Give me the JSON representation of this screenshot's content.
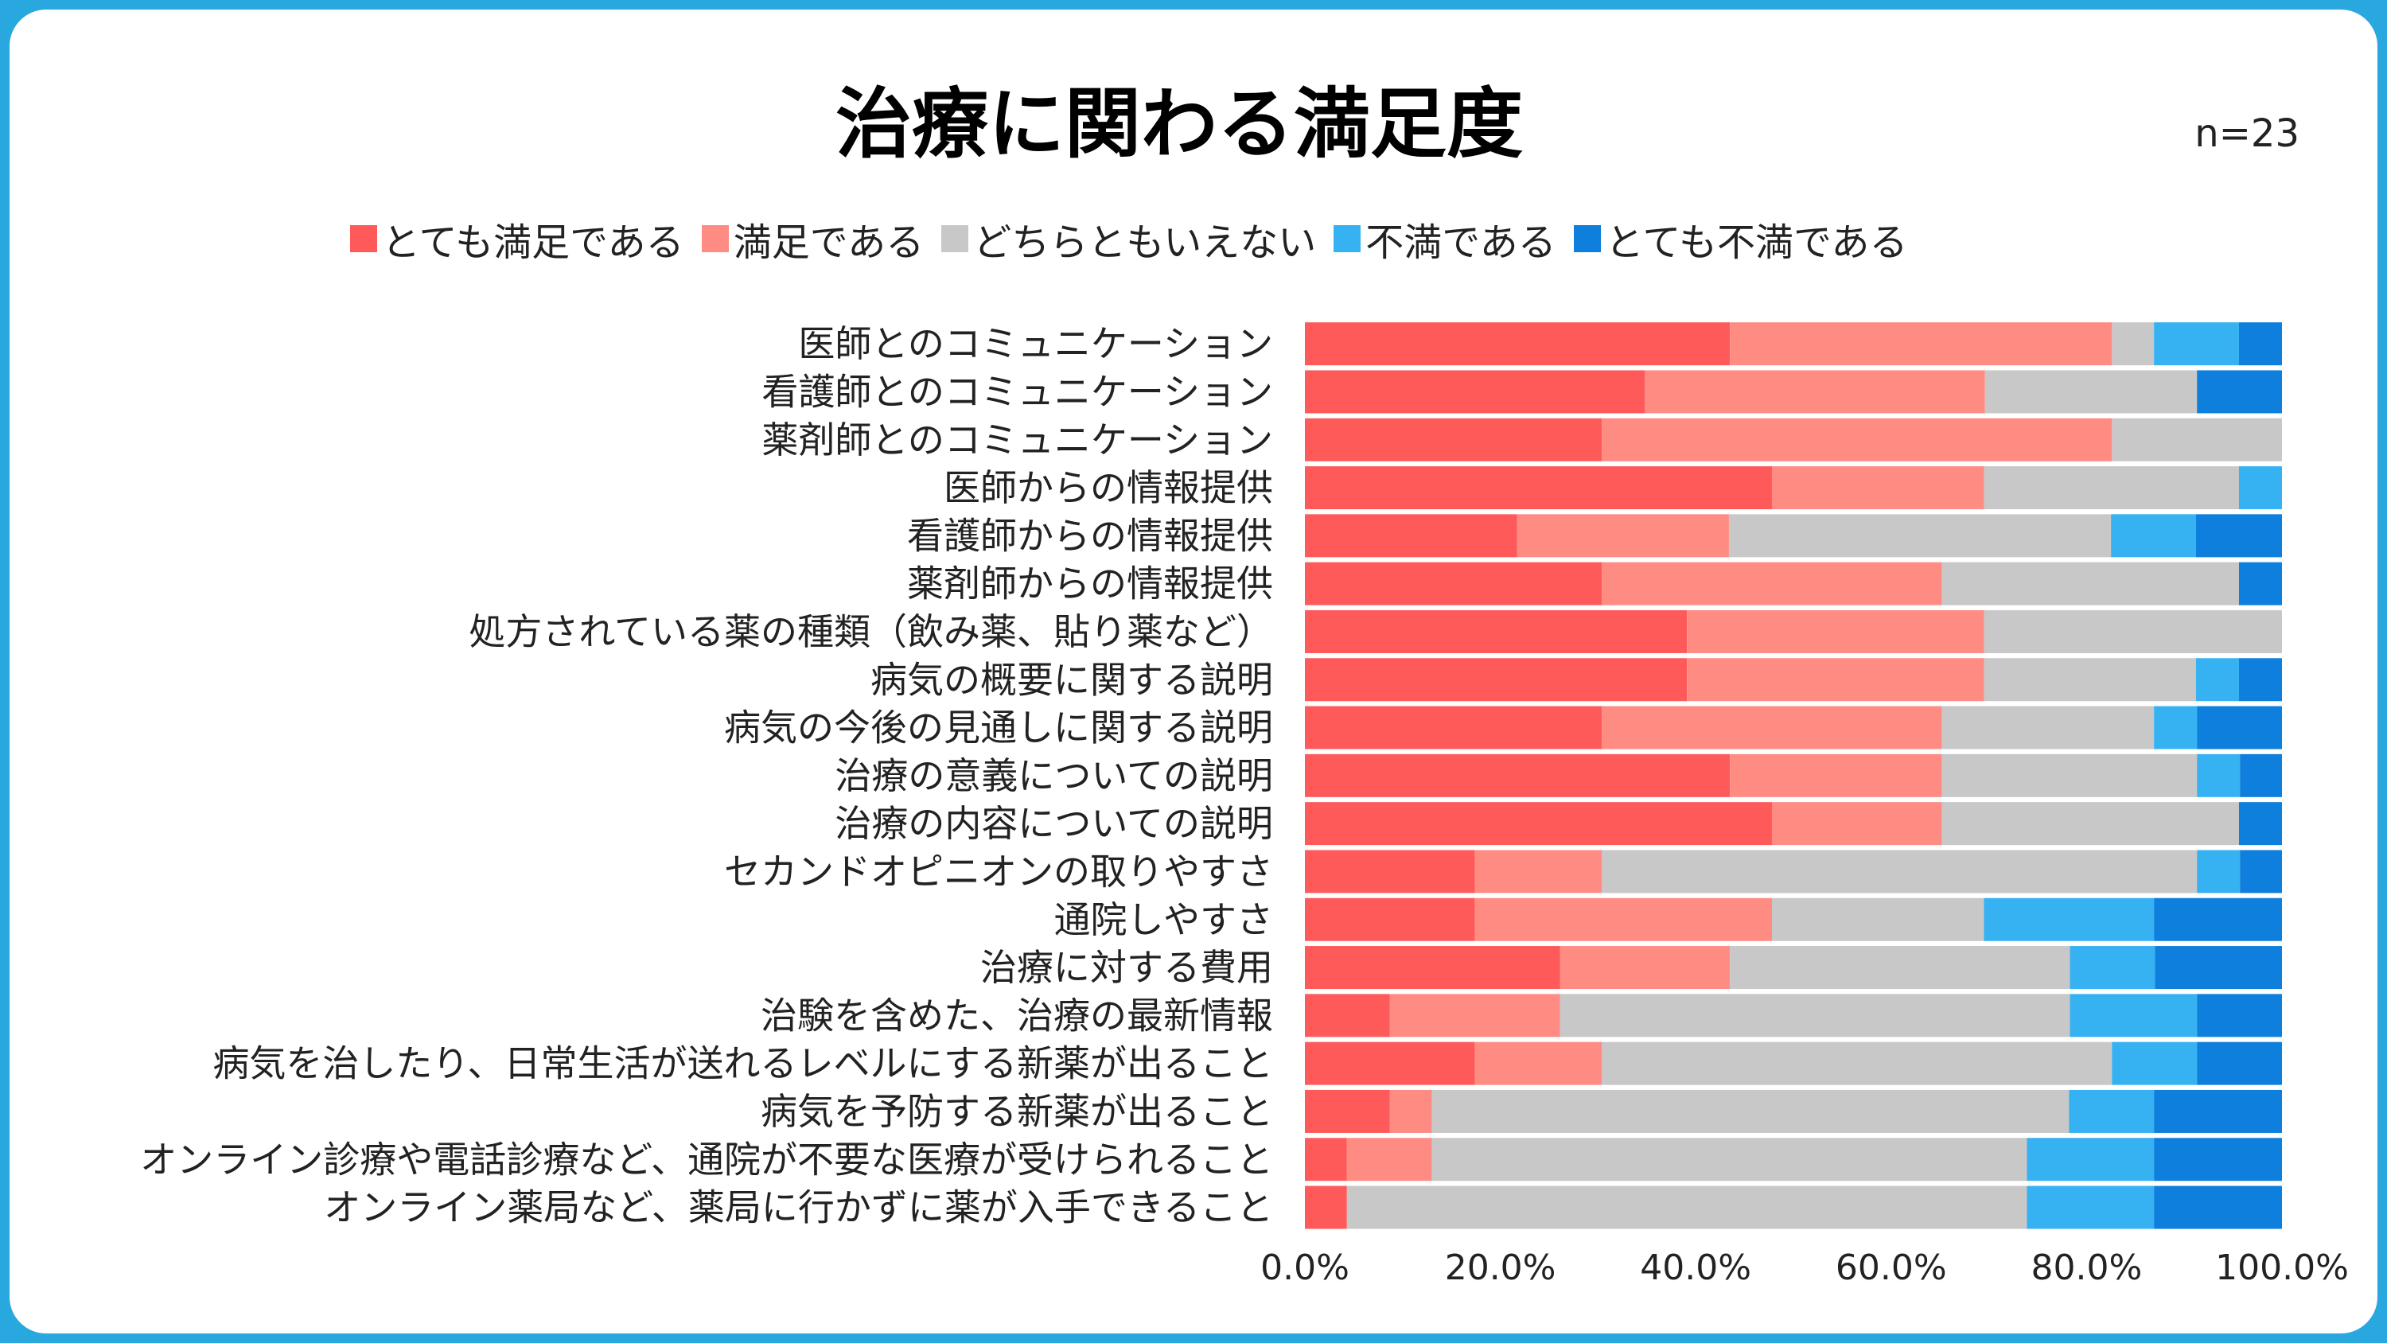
{
  "title": "治療に関わる満足度",
  "sample_size": "n=23",
  "colors": {
    "frame": "#29a8e0",
    "very_satisfied": "#ff5a5a",
    "satisfied": "#ff8c82",
    "neutral": "#c8c8c8",
    "dissatisfied": "#36b2f2",
    "very_dissatisfied": "#0e7fdc"
  },
  "chart_data": {
    "type": "bar",
    "orientation": "horizontal",
    "stacked": "100%",
    "title": "治療に関わる満足度",
    "x_ticks": [
      "0.0%",
      "20.0%",
      "40.0%",
      "60.0%",
      "80.0%",
      "100.0%"
    ],
    "xlim": [
      0,
      100
    ],
    "legend_position": "top",
    "categories": [
      "医師とのコミュニケーション",
      "看護師とのコミュニケーション",
      "薬剤師とのコミュニケーション",
      "医師からの情報提供",
      "看護師からの情報提供",
      "薬剤師からの情報提供",
      "処方されている薬の種類（飲み薬、貼り薬など）",
      "病気の概要に関する説明",
      "病気の今後の見通しに関する説明",
      "治療の意義についての説明",
      "治療の内容についての説明",
      "セカンドオピニオンの取りやすさ",
      "通院しやすさ",
      "治療に対する費用",
      "治験を含めた、治療の最新情報",
      "病気を治したり、日常生活が送れるレベルにする新薬が出ること",
      "病気を予防する新薬が出ること",
      "オンライン診療や電話診療など、通院が不要な医療が受けられること",
      "オンライン薬局など、薬局に行かずに薬が入手できること"
    ],
    "series": [
      {
        "name": "とても満足である",
        "color": "#ff5a5a",
        "values": [
          43.5,
          34.8,
          30.4,
          47.8,
          21.7,
          30.4,
          39.1,
          39.1,
          30.4,
          43.5,
          47.8,
          17.4,
          17.4,
          26.1,
          8.7,
          17.4,
          8.7,
          4.3,
          4.3
        ]
      },
      {
        "name": "満足である",
        "color": "#ff8c82",
        "values": [
          39.1,
          34.8,
          52.2,
          21.7,
          21.7,
          34.8,
          30.4,
          30.4,
          34.8,
          21.7,
          17.4,
          13.0,
          30.4,
          17.4,
          17.4,
          13.0,
          4.3,
          8.7,
          0
        ]
      },
      {
        "name": "どちらともいえない",
        "color": "#c8c8c8",
        "values": [
          4.3,
          21.7,
          17.4,
          26.1,
          39.1,
          30.4,
          30.5,
          21.7,
          21.7,
          26.1,
          30.4,
          60.9,
          21.7,
          34.8,
          52.2,
          52.2,
          65.2,
          60.9,
          69.6
        ]
      },
      {
        "name": "不満である",
        "color": "#36b2f2",
        "values": [
          8.7,
          0,
          0,
          4.4,
          8.7,
          0,
          0,
          4.4,
          4.4,
          4.4,
          0,
          4.4,
          17.4,
          8.7,
          13.0,
          8.7,
          8.7,
          13.0,
          13.0
        ]
      },
      {
        "name": "とても不満である",
        "color": "#0e7fdc",
        "values": [
          4.4,
          8.7,
          0,
          0,
          8.8,
          4.4,
          0,
          4.4,
          8.7,
          4.3,
          4.4,
          4.3,
          13.1,
          13.0,
          8.7,
          8.7,
          13.1,
          13.1,
          13.1
        ]
      }
    ]
  }
}
